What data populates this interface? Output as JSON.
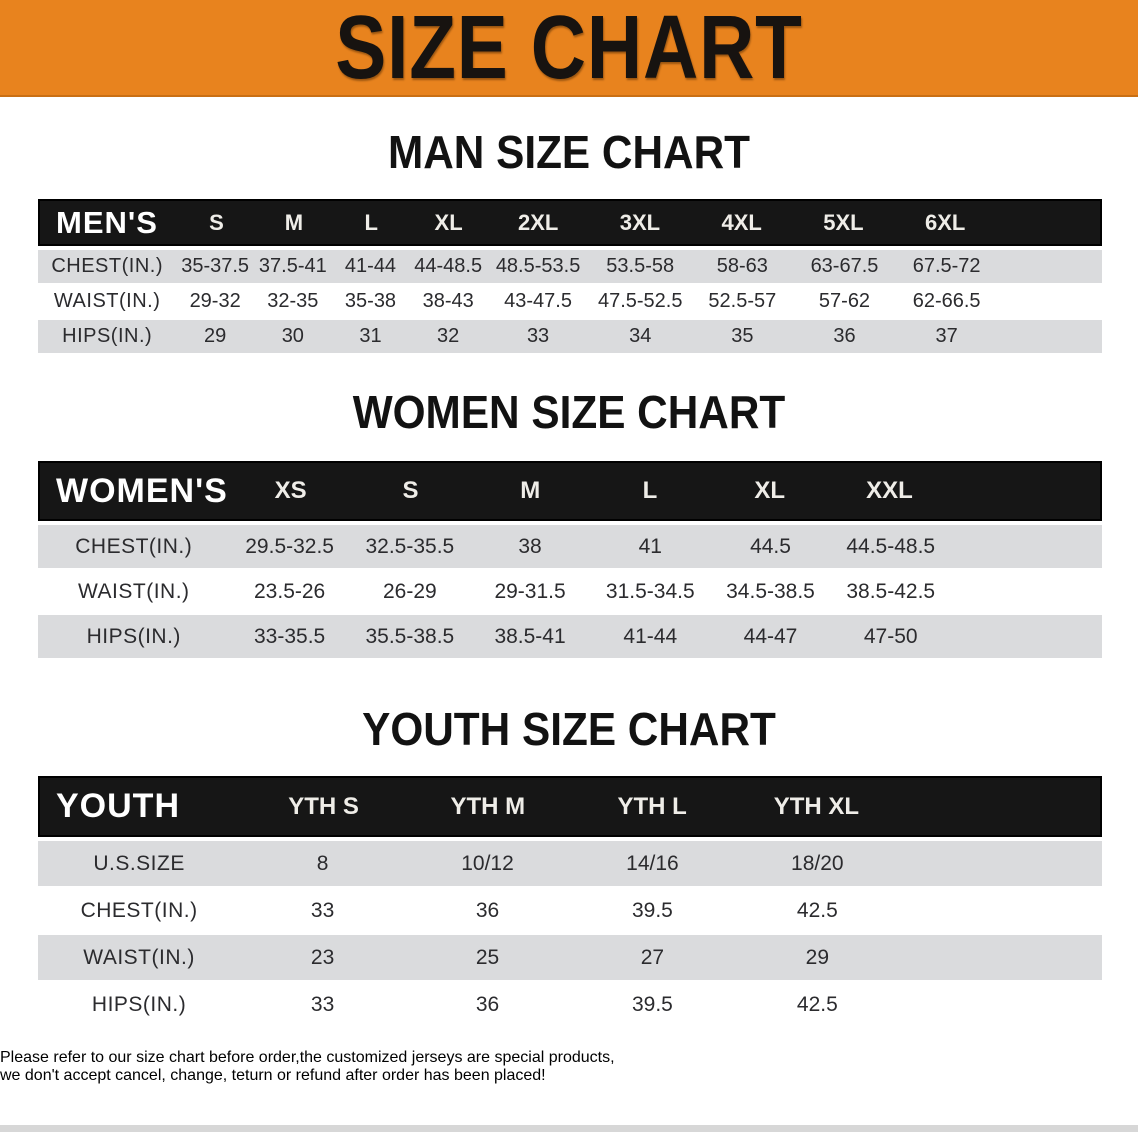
{
  "banner": {
    "title": "SIZE CHART",
    "bg_color": "#e8831e",
    "text_color": "#171310"
  },
  "sections": [
    {
      "heading": "MAN SIZE CHART",
      "table": {
        "label_header": "MEN'S",
        "size_headers": [
          "S",
          "M",
          "L",
          "XL",
          "2XL",
          "3XL",
          "4XL",
          "5XL",
          "6XL"
        ],
        "rows": [
          {
            "label": "CHEST(IN.)",
            "values": [
              "35-37.5",
              "37.5-41",
              "41-44",
              "44-48.5",
              "48.5-53.5",
              "53.5-58",
              "58-63",
              "63-67.5",
              "67.5-72"
            ]
          },
          {
            "label": "WAIST(IN.)",
            "values": [
              "29-32",
              "32-35",
              "35-38",
              "38-43",
              "43-47.5",
              "47.5-52.5",
              "52.5-57",
              "57-62",
              "62-66.5"
            ]
          },
          {
            "label": "HIPS(IN.)",
            "values": [
              "29",
              "30",
              "31",
              "32",
              "33",
              "34",
              "35",
              "36",
              "37"
            ]
          }
        ]
      }
    },
    {
      "heading": "WOMEN SIZE CHART",
      "table": {
        "label_header": "WOMEN'S",
        "size_headers": [
          "XS",
          "S",
          "M",
          "L",
          "XL",
          "XXL"
        ],
        "rows": [
          {
            "label": "CHEST(IN.)",
            "values": [
              "29.5-32.5",
              "32.5-35.5",
              "38",
              "41",
              "44.5",
              "44.5-48.5"
            ]
          },
          {
            "label": "WAIST(IN.)",
            "values": [
              "23.5-26",
              "26-29",
              "29-31.5",
              "31.5-34.5",
              "34.5-38.5",
              "38.5-42.5"
            ]
          },
          {
            "label": "HIPS(IN.)",
            "values": [
              "33-35.5",
              "35.5-38.5",
              "38.5-41",
              "41-44",
              "44-47",
              "47-50"
            ]
          }
        ]
      }
    },
    {
      "heading": "YOUTH SIZE CHART",
      "table": {
        "label_header": "YOUTH",
        "size_headers": [
          "YTH S",
          "YTH M",
          "YTH L",
          "YTH XL"
        ],
        "rows": [
          {
            "label": "U.S.SIZE",
            "values": [
              "8",
              "10/12",
              "14/16",
              "18/20"
            ]
          },
          {
            "label": "CHEST(IN.)",
            "values": [
              "33",
              "36",
              "39.5",
              "42.5"
            ]
          },
          {
            "label": "WAIST(IN.)",
            "values": [
              "23",
              "25",
              "27",
              "29"
            ]
          },
          {
            "label": "HIPS(IN.)",
            "values": [
              "33",
              "36",
              "39.5",
              "42.5"
            ]
          }
        ]
      }
    }
  ],
  "table_colors": {
    "header_bar": "#161616",
    "header_text": "#f6f4f0",
    "row_gray": "#dadbdd",
    "row_white": "#ffffff",
    "value_text": "#2b2b2e"
  },
  "disclaimer": {
    "color": "#a43028",
    "lines": [
      "Please refer to our size chart before order,the customized jerseys are special products,",
      "we don't accept cancel, change, teturn or refund after order has been placed!"
    ]
  }
}
